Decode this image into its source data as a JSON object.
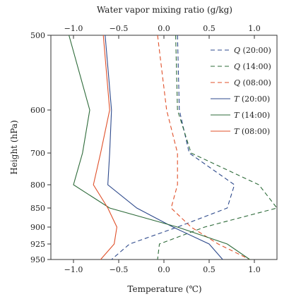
{
  "chart_data": {
    "type": "line",
    "title": "Water vapor mixing ratio (g/kg)",
    "xlabel": "Temperature (℃)",
    "ylabel": "Height (hPa)",
    "top_axis": {
      "label": "Water vapor mixing ratio (g/kg)",
      "range": [
        -1.25,
        1.25
      ],
      "ticks": [
        -1.0,
        -0.5,
        0.0,
        0.5,
        1.0
      ],
      "tick_labels": [
        "−1.0",
        "−0.5",
        "0.0",
        "0.5",
        "1.0"
      ]
    },
    "bottom_axis": {
      "label": "Temperature (℃)",
      "range": [
        -1.25,
        1.25
      ],
      "ticks": [
        -1.0,
        -0.5,
        0.0,
        0.5,
        1.0
      ],
      "tick_labels": [
        "−1.0",
        "−0.5",
        "0.0",
        "0.5",
        "1.0"
      ]
    },
    "y_axis": {
      "label": "Height (hPa)",
      "levels": [
        500,
        600,
        700,
        800,
        850,
        900,
        925,
        950
      ],
      "tick_labels": [
        "500",
        "600",
        "700",
        "800",
        "850",
        "900",
        "925",
        "950"
      ]
    },
    "legend_position": "top-right",
    "series": [
      {
        "name": "Q (20:00)",
        "label_var": "Q",
        "label_time": "(20:00)",
        "axis": "top",
        "color": "#2e4a8c",
        "dash": true,
        "points": [
          [
            0.15,
            500
          ],
          [
            0.17,
            600
          ],
          [
            0.28,
            700
          ],
          [
            0.78,
            800
          ],
          [
            0.7,
            850
          ],
          [
            0.15,
            900
          ],
          [
            -0.38,
            925
          ],
          [
            -0.58,
            950
          ]
        ]
      },
      {
        "name": "Q (14:00)",
        "label_var": "Q",
        "label_time": "(14:00)",
        "axis": "top",
        "color": "#2e6b3a",
        "dash": true,
        "points": [
          [
            0.13,
            500
          ],
          [
            0.15,
            600
          ],
          [
            0.3,
            700
          ],
          [
            1.05,
            800
          ],
          [
            1.25,
            850
          ],
          [
            0.45,
            900
          ],
          [
            -0.05,
            925
          ],
          [
            -0.07,
            950
          ]
        ]
      },
      {
        "name": "Q (08:00)",
        "label_var": "Q",
        "label_time": "(08:00)",
        "axis": "top",
        "color": "#e0502a",
        "dash": true,
        "points": [
          [
            -0.07,
            500
          ],
          [
            0.03,
            600
          ],
          [
            0.15,
            700
          ],
          [
            0.15,
            800
          ],
          [
            0.08,
            850
          ],
          [
            0.3,
            900
          ],
          [
            0.6,
            925
          ],
          [
            0.95,
            950
          ]
        ]
      },
      {
        "name": "T (20:00)",
        "label_var": "T",
        "label_time": "(20:00)",
        "axis": "bottom",
        "color": "#2e4a8c",
        "dash": false,
        "points": [
          [
            -0.65,
            500
          ],
          [
            -0.58,
            600
          ],
          [
            -0.6,
            700
          ],
          [
            -0.62,
            800
          ],
          [
            -0.3,
            850
          ],
          [
            0.1,
            900
          ],
          [
            0.5,
            925
          ],
          [
            0.65,
            950
          ]
        ]
      },
      {
        "name": "T (14:00)",
        "label_var": "T",
        "label_time": "(14:00)",
        "axis": "bottom",
        "color": "#2e6b3a",
        "dash": false,
        "points": [
          [
            -1.05,
            500
          ],
          [
            -0.82,
            600
          ],
          [
            -0.9,
            700
          ],
          [
            -1.0,
            800
          ],
          [
            -0.6,
            850
          ],
          [
            0.15,
            900
          ],
          [
            0.7,
            925
          ],
          [
            0.95,
            950
          ]
        ]
      },
      {
        "name": "T (08:00)",
        "label_var": "T",
        "label_time": "(08:00)",
        "axis": "bottom",
        "color": "#e0502a",
        "dash": false,
        "points": [
          [
            -0.67,
            500
          ],
          [
            -0.6,
            600
          ],
          [
            -0.7,
            700
          ],
          [
            -0.78,
            800
          ],
          [
            -0.62,
            850
          ],
          [
            -0.52,
            900
          ],
          [
            -0.55,
            925
          ],
          [
            -0.7,
            950
          ]
        ]
      }
    ]
  }
}
